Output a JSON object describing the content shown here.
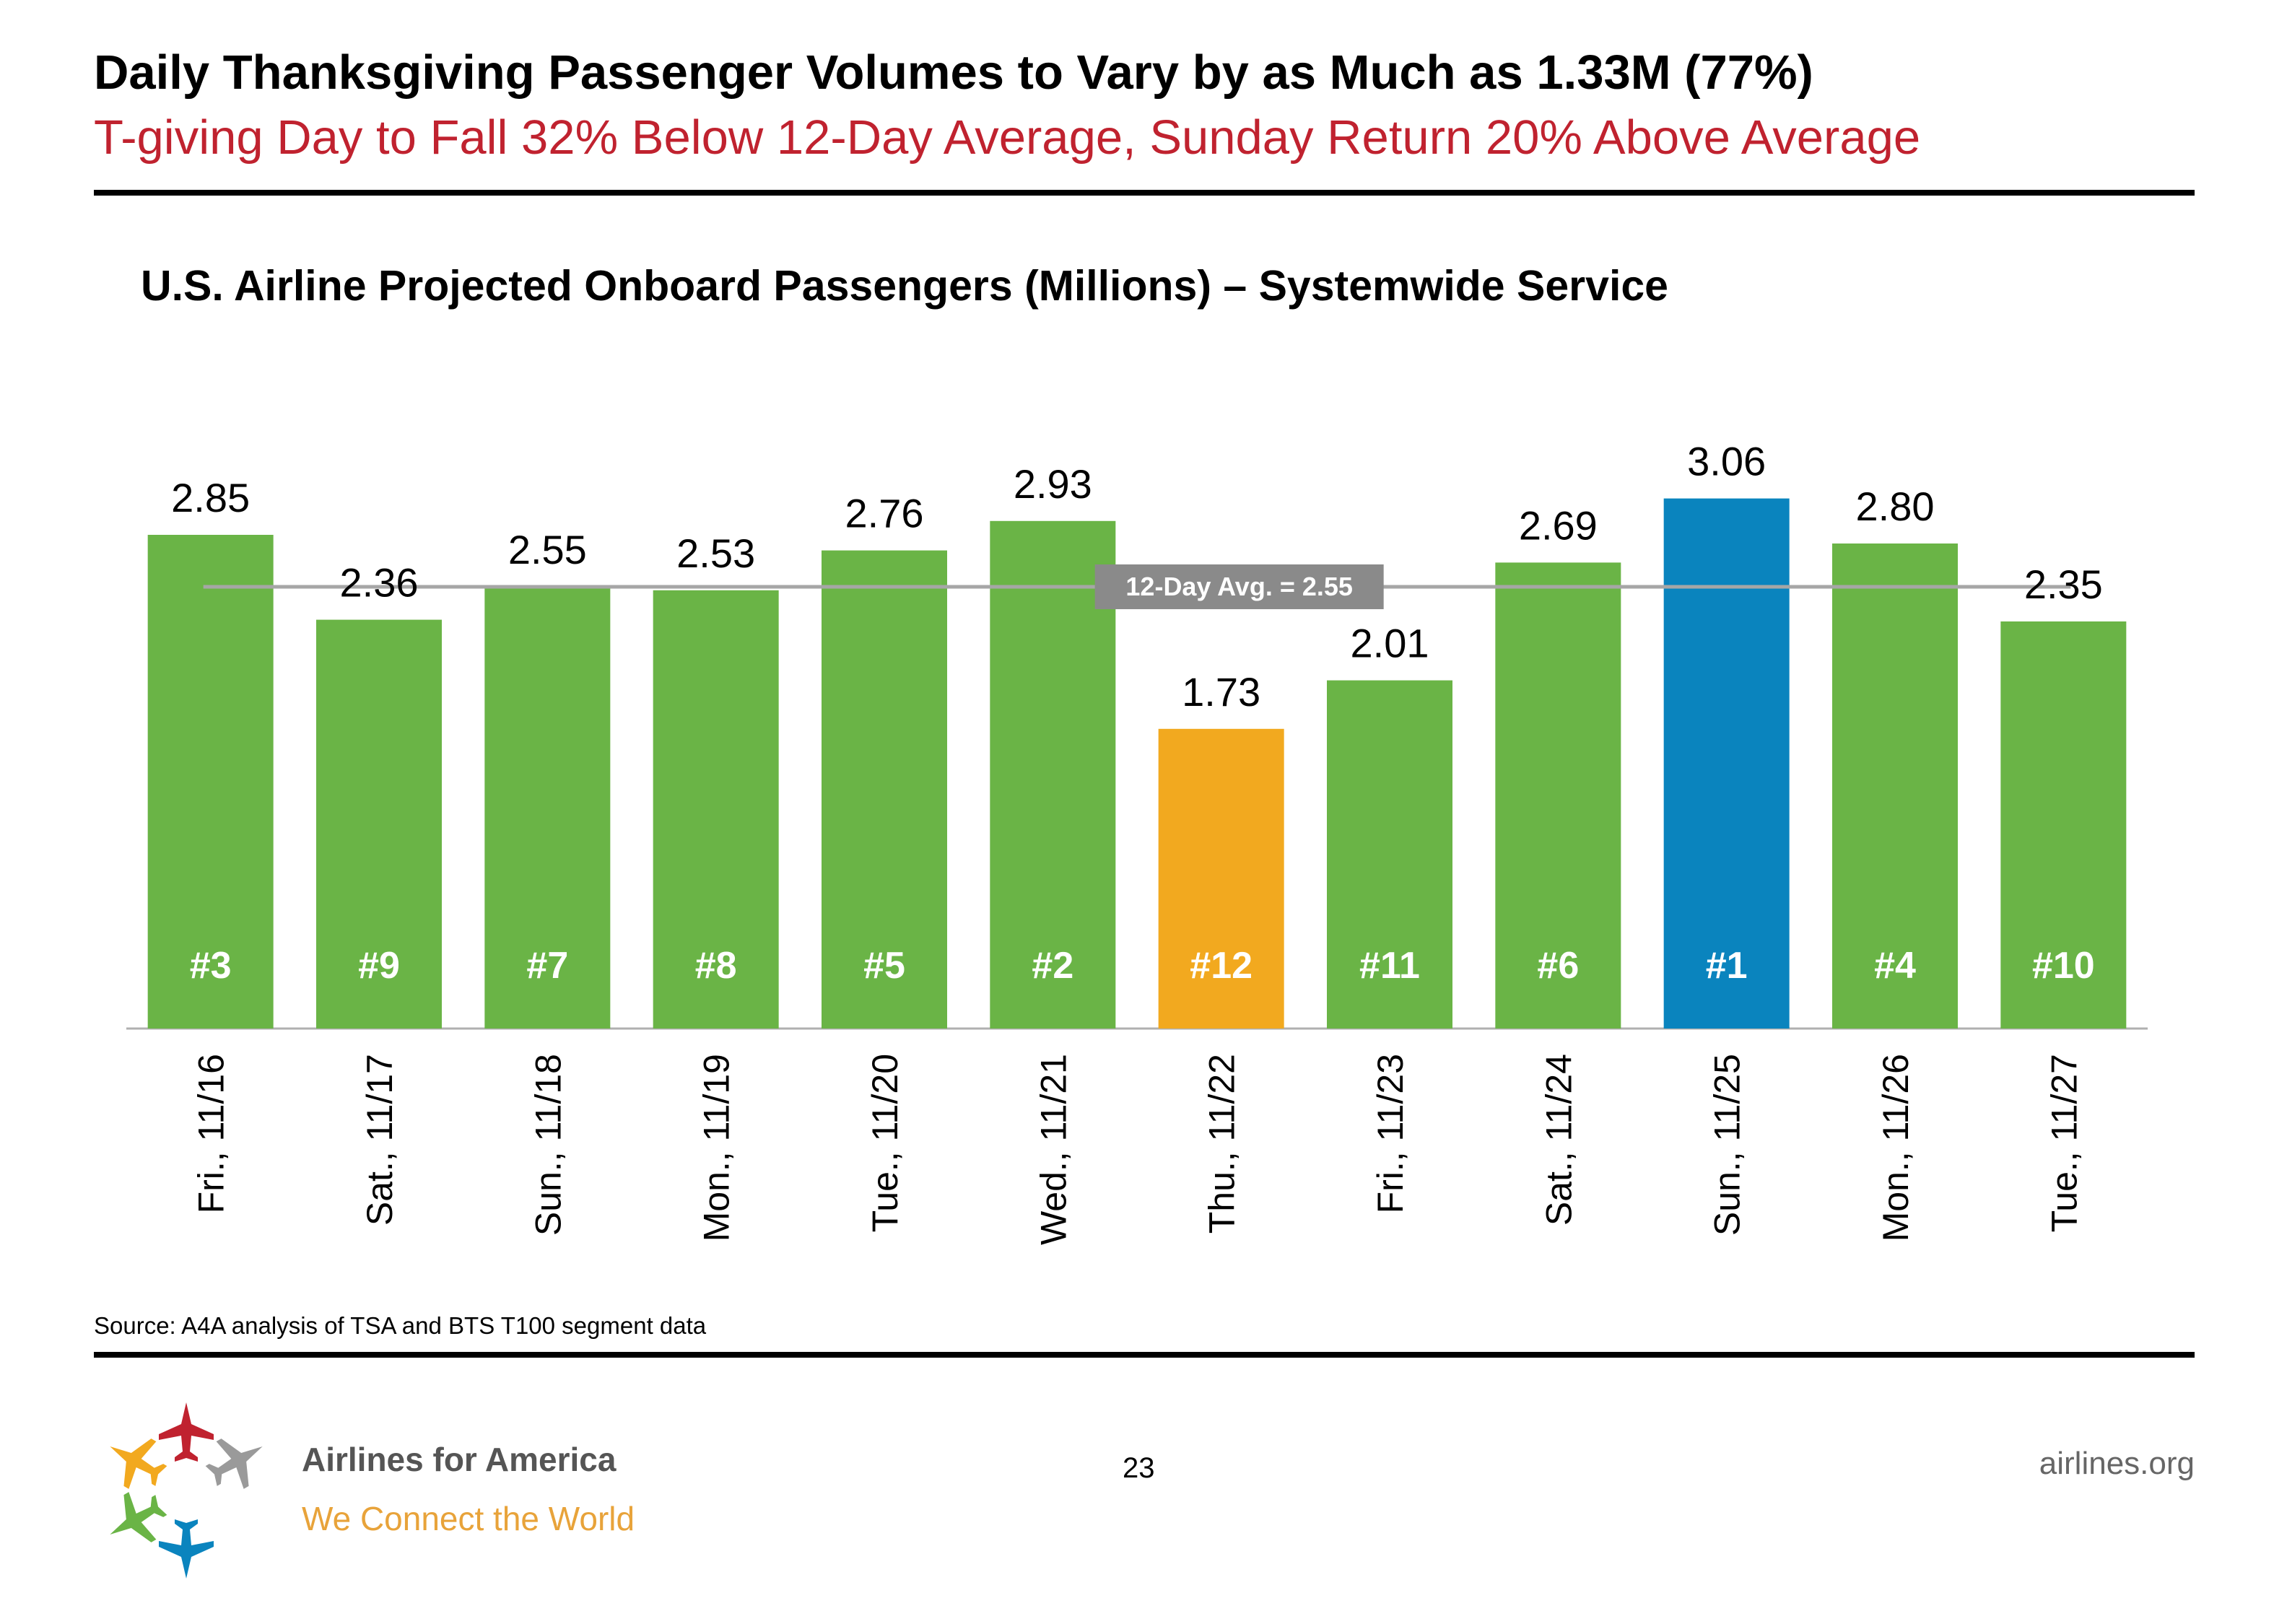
{
  "header": {
    "title": "Daily Thanksgiving Passenger Volumes to Vary by as Much as 1.33M (77%)",
    "subtitle": "T-giving Day to Fall 32% Below 12-Day Average, Sunday Return 20% Above Average"
  },
  "chart_data": {
    "type": "bar",
    "title": "U.S. Airline Projected Onboard Passengers (Millions) – Systemwide Service",
    "xlabel": "",
    "ylabel": "",
    "ylim": [
      0,
      3.5
    ],
    "grid": false,
    "categories": [
      "Fri., 11/16",
      "Sat., 11/17",
      "Sun., 11/18",
      "Mon., 11/19",
      "Tue., 11/20",
      "Wed., 11/21",
      "Thu., 11/22",
      "Fri., 11/23",
      "Sat., 11/24",
      "Sun., 11/25",
      "Mon., 11/26",
      "Tue., 11/27"
    ],
    "values": [
      2.85,
      2.36,
      2.55,
      2.53,
      2.76,
      2.93,
      1.73,
      2.01,
      2.69,
      3.06,
      2.8,
      2.35
    ],
    "value_labels": [
      "2.85",
      "2.36",
      "2.55",
      "2.53",
      "2.76",
      "2.93",
      "1.73",
      "2.01",
      "2.69",
      "3.06",
      "2.80",
      "2.35"
    ],
    "ranks": [
      "#3",
      "#9",
      "#7",
      "#8",
      "#5",
      "#2",
      "#12",
      "#11",
      "#6",
      "#1",
      "#4",
      "#10"
    ],
    "bar_colors": [
      "#6ab446",
      "#6ab446",
      "#6ab446",
      "#6ab446",
      "#6ab446",
      "#6ab446",
      "#f2a91f",
      "#6ab446",
      "#6ab446",
      "#0a84be",
      "#6ab446",
      "#6ab446"
    ],
    "reference_line": {
      "value": 2.55,
      "label": "12-Day Avg. = 2.55",
      "color": "#a6a6a6"
    }
  },
  "footer": {
    "source": "Source: A4A analysis of TSA and BTS T100 segment data",
    "brand_name": "Airlines for America",
    "brand_tagline": "We Connect the World",
    "page_number": "23",
    "website": "airlines.org"
  },
  "colors": {
    "subtitle": "#c0222f",
    "logo_orange": "#f2a91f",
    "logo_red": "#c0222f",
    "logo_green": "#6ab446",
    "logo_blue": "#0a84be",
    "logo_gray": "#9a9a9a"
  }
}
